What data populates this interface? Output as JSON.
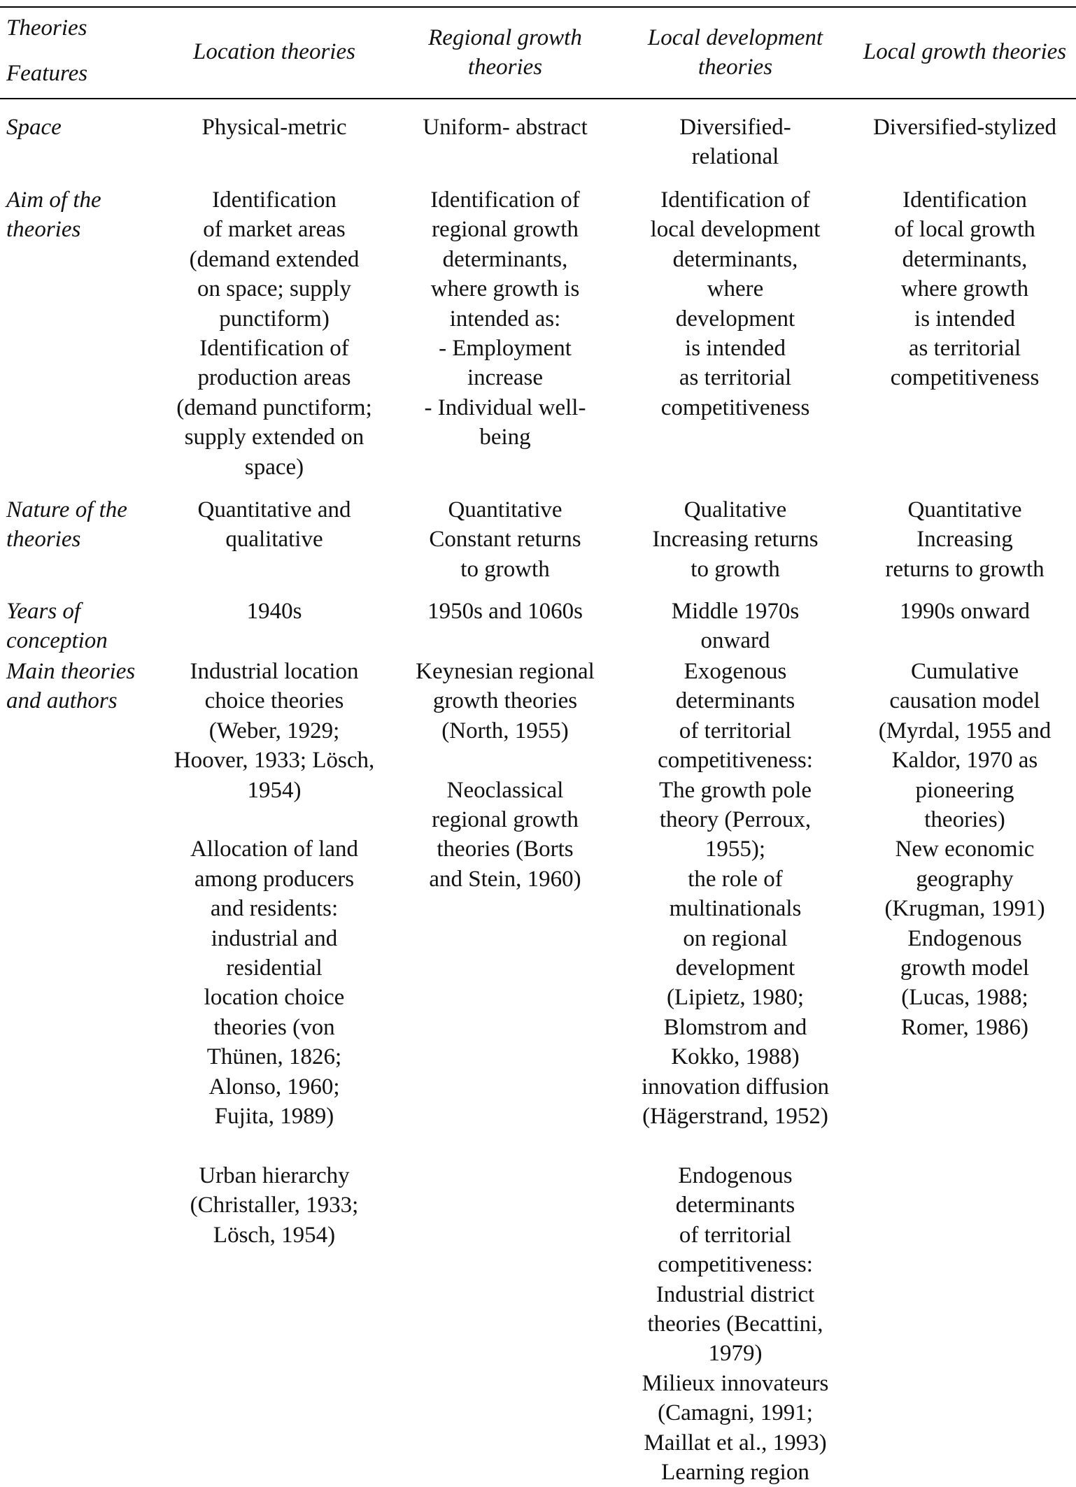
{
  "header": {
    "corner_top": "Theories",
    "corner_bottom": "Features",
    "columns": [
      "Location theories",
      "Regional growth\ntheories",
      "Local development\ntheories",
      "Local growth theories"
    ]
  },
  "rows": [
    {
      "label": "Space",
      "cells": [
        "Physical-metric",
        "Uniform- abstract",
        "Diversified-\nrelational",
        "Diversified-stylized"
      ]
    },
    {
      "label": "Aim of the\ntheories",
      "cells": [
        "Identification\nof market areas\n(demand extended\non space; supply\npunctiform)\nIdentification of\nproduction areas\n(demand punctiform;\nsupply extended on\nspace)",
        "Identification of\nregional growth\ndeterminants,\nwhere growth is\nintended as:\n- Employment\nincrease\n- Individual well-\nbeing",
        "Identification of\nlocal development\ndeterminants,\nwhere\ndevelopment\nis intended\nas territorial\ncompetitiveness",
        "Identification\nof local growth\ndeterminants,\nwhere growth\nis intended\nas territorial\ncompetitiveness"
      ]
    },
    {
      "label": "Nature of the\ntheories",
      "cells": [
        "Quantitative and\nqualitative",
        "Quantitative\nConstant returns\nto growth",
        "Qualitative\nIncreasing returns\nto growth",
        "Quantitative\nIncreasing\nreturns to growth"
      ]
    },
    {
      "label": "Years of\nconception",
      "cells": [
        "1940s",
        "1950s and 1060s",
        "Middle 1970s\nonward",
        "1990s onward"
      ]
    },
    {
      "label": "Main theories\nand authors",
      "cells": [
        "Industrial location\nchoice theories\n(Weber, 1929;\nHoover, 1933; Lösch,\n1954)\n\nAllocation of land\namong producers\nand residents:\nindustrial and\nresidential\nlocation choice\ntheories (von\nThünen, 1826;\nAlonso, 1960;\nFujita, 1989)\n\nUrban hierarchy\n(Christaller, 1933;\nLösch, 1954)",
        "Keynesian regional\ngrowth theories\n(North, 1955)\n\nNeoclassical\nregional growth\ntheories (Borts\nand Stein, 1960)",
        "Exogenous\ndeterminants\nof territorial\ncompetitiveness:\nThe growth pole\ntheory (Perroux,\n1955);\nthe role of\nmultinationals\non regional\ndevelopment\n(Lipietz, 1980;\nBlomstrom and\nKokko, 1988)\ninnovation diffusion\n(Hägerstrand, 1952)\n\nEndogenous\ndeterminants\nof territorial\ncompetitiveness:\nIndustrial district\ntheories (Becattini,\n1979)\nMilieux innovateurs\n(Camagni, 1991;\nMaillat et al., 1993)\nLearning region",
        "Cumulative\ncausation model\n(Myrdal, 1955 and\nKaldor, 1970 as\npioneering\ntheories)\nNew economic\ngeography\n(Krugman, 1991)\nEndogenous\ngrowth model\n(Lucas, 1988;\nRomer, 1986)"
      ]
    }
  ]
}
